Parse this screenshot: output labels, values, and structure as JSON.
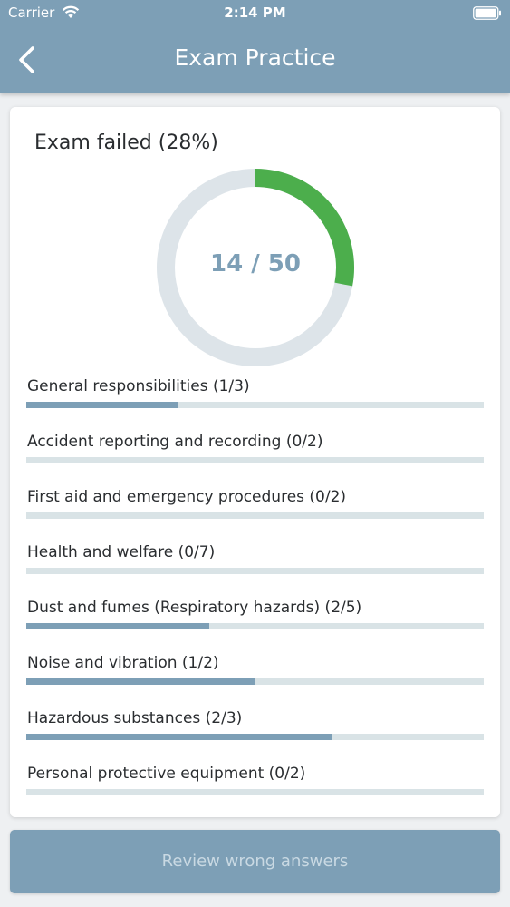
{
  "status_bar": {
    "carrier": "Carrier",
    "time": "2:14 PM"
  },
  "header": {
    "title": "Exam Practice",
    "back_icon": "chevron-left-icon"
  },
  "result": {
    "text": "Exam failed (28%)",
    "score_text": "14 / 50",
    "correct": 14,
    "total": 50
  },
  "categories": [
    {
      "label": "General responsibilities (1/3)",
      "correct": 1,
      "total": 3
    },
    {
      "label": "Accident reporting and recording (0/2)",
      "correct": 0,
      "total": 2
    },
    {
      "label": "First aid and emergency procedures (0/2)",
      "correct": 0,
      "total": 2
    },
    {
      "label": "Health and welfare (0/7)",
      "correct": 0,
      "total": 7
    },
    {
      "label": "Dust and fumes (Respiratory hazards) (2/5)",
      "correct": 2,
      "total": 5
    },
    {
      "label": "Noise and vibration (1/2)",
      "correct": 1,
      "total": 2
    },
    {
      "label": "Hazardous substances (2/3)",
      "correct": 2,
      "total": 3
    },
    {
      "label": "Personal protective equipment (0/2)",
      "correct": 0,
      "total": 2
    }
  ],
  "review_button": {
    "label": "Review wrong answers"
  },
  "colors": {
    "header": "#7d9fb6",
    "donut_correct": "#4cae4c",
    "donut_track": "#dde4e9",
    "progress_fill": "#7d9fb6",
    "progress_track": "#d9e3e6"
  }
}
